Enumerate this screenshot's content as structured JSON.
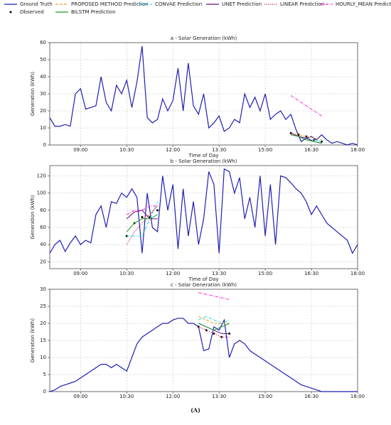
{
  "chart_data": [
    {
      "type": "line",
      "title": "a - Solar Generation (kWh)",
      "x_label": "Time of Day",
      "y_label": "Generation (kWh)",
      "xlim": [
        480,
        1080
      ],
      "xticks": [
        {
          "value": 540,
          "label": "09:00"
        },
        {
          "value": 630,
          "label": "10:30"
        },
        {
          "value": 720,
          "label": "12:00"
        },
        {
          "value": 810,
          "label": "13:30"
        },
        {
          "value": 900,
          "label": "15:00"
        },
        {
          "value": 990,
          "label": "16:30"
        },
        {
          "value": 1080,
          "label": "18:00"
        }
      ],
      "ylim": [
        0,
        60
      ],
      "yticks": [
        0,
        10,
        20,
        30,
        40,
        50,
        60
      ],
      "grid": true,
      "legend": "top",
      "series": [
        {
          "name": "Ground Truth",
          "color": "#1f1fb4",
          "style": "solid",
          "x": [
            480,
            490,
            500,
            510,
            520,
            530,
            540,
            550,
            560,
            570,
            580,
            590,
            600,
            610,
            620,
            630,
            640,
            650,
            660,
            670,
            680,
            690,
            700,
            710,
            720,
            730,
            740,
            750,
            760,
            770,
            780,
            790,
            800,
            810,
            820,
            830,
            840,
            850,
            860,
            870,
            880,
            890,
            900,
            910,
            920,
            930,
            940,
            950,
            960,
            970,
            980,
            990,
            1000,
            1010,
            1020,
            1030,
            1040,
            1050,
            1060,
            1070,
            1080
          ],
          "values": [
            16,
            11,
            11,
            12,
            11,
            30,
            33,
            21,
            22,
            23,
            40,
            25,
            20,
            35,
            30,
            38,
            22,
            37,
            58,
            16,
            13,
            15,
            27,
            20,
            26,
            45,
            20,
            48,
            23,
            18,
            30,
            10,
            13,
            17,
            8,
            10,
            15,
            13,
            30,
            22,
            28,
            20,
            30,
            15,
            18,
            20,
            15,
            18,
            9,
            2,
            4,
            5,
            3,
            6,
            3,
            1,
            2,
            1,
            0,
            1,
            0
          ]
        },
        {
          "name": "Observed",
          "color": "#000000",
          "style": "none",
          "marker": true,
          "x": [
            950,
            965,
            980,
            995,
            1010
          ],
          "values": [
            7,
            6,
            5,
            3,
            2
          ]
        },
        {
          "name": "PROPOSED METHOD Prediction",
          "color": "#ff9f1c",
          "style": "dashed",
          "x": [
            950,
            965,
            980,
            995,
            1010
          ],
          "values": [
            7,
            6,
            5,
            4,
            3
          ]
        },
        {
          "name": "CONVAE Prediction",
          "color": "#17d4e8",
          "style": "dashdot",
          "x": [
            950,
            965,
            980,
            995,
            1010
          ],
          "values": [
            6,
            5,
            4,
            3,
            2
          ]
        },
        {
          "name": "UNET Prediction",
          "color": "#6a0d83",
          "style": "solid",
          "x": [
            950,
            965,
            980,
            995,
            1010
          ],
          "values": [
            7,
            5,
            4,
            2,
            1
          ]
        },
        {
          "name": "LINEAR Prediction",
          "color": "#c2185b",
          "style": "dotted",
          "x": [
            950,
            965,
            980,
            995,
            1010
          ],
          "values": [
            6,
            5,
            3,
            2,
            1
          ]
        },
        {
          "name": "HOURLY_MEAN Prediction",
          "color": "#ff1fd2",
          "style": "dashdot",
          "x": [
            950,
            965,
            980,
            995,
            1010
          ],
          "values": [
            29,
            26,
            23,
            20,
            17
          ]
        },
        {
          "name": "BILSTM Prediction",
          "color": "#1a9e2f",
          "style": "solid",
          "x": [
            950,
            965,
            980,
            995,
            1010
          ],
          "values": [
            6,
            5,
            3,
            2,
            1
          ]
        }
      ]
    },
    {
      "type": "line",
      "title": "b - Solar Generation (kWh)",
      "x_label": "Time of Day",
      "y_label": "Generation (kWh)",
      "xlim": [
        480,
        1080
      ],
      "xticks": [
        {
          "value": 540,
          "label": "09:00"
        },
        {
          "value": 630,
          "label": "10:30"
        },
        {
          "value": 720,
          "label": "12:00"
        },
        {
          "value": 810,
          "label": "13:30"
        },
        {
          "value": 900,
          "label": "15:00"
        },
        {
          "value": 990,
          "label": "16:30"
        },
        {
          "value": 1080,
          "label": "18:00"
        }
      ],
      "ylim": [
        12,
        132
      ],
      "yticks": [
        20,
        40,
        60,
        80,
        100,
        120
      ],
      "grid": true,
      "series": [
        {
          "name": "Ground Truth",
          "color": "#1f1fb4",
          "style": "solid",
          "x": [
            480,
            490,
            500,
            510,
            520,
            530,
            540,
            550,
            560,
            570,
            580,
            590,
            600,
            610,
            620,
            630,
            640,
            650,
            660,
            670,
            680,
            690,
            700,
            710,
            720,
            730,
            740,
            750,
            760,
            770,
            780,
            790,
            800,
            810,
            820,
            830,
            840,
            850,
            860,
            870,
            880,
            890,
            900,
            910,
            920,
            930,
            940,
            950,
            960,
            970,
            980,
            990,
            1000,
            1010,
            1020,
            1030,
            1040,
            1050,
            1060,
            1070,
            1080
          ],
          "values": [
            30,
            40,
            45,
            32,
            42,
            50,
            40,
            45,
            42,
            75,
            85,
            60,
            90,
            88,
            100,
            95,
            105,
            95,
            30,
            100,
            60,
            55,
            120,
            80,
            110,
            35,
            105,
            50,
            90,
            40,
            70,
            125,
            110,
            30,
            128,
            125,
            100,
            118,
            70,
            95,
            60,
            120,
            50,
            110,
            40,
            120,
            118,
            112,
            105,
            100,
            90,
            75,
            85,
            75,
            65,
            60,
            55,
            50,
            45,
            30,
            40
          ]
        },
        {
          "name": "Observed",
          "color": "#000000",
          "style": "none",
          "marker": true,
          "x": [
            630,
            645,
            660,
            675,
            690
          ],
          "values": [
            50,
            65,
            72,
            72,
            80
          ]
        },
        {
          "name": "PROPOSED METHOD Prediction",
          "color": "#ff9f1c",
          "style": "dashed",
          "x": [
            630,
            645,
            660,
            675,
            690
          ],
          "values": [
            55,
            65,
            70,
            75,
            85
          ]
        },
        {
          "name": "CONVAE Prediction",
          "color": "#17d4e8",
          "style": "dashdot",
          "x": [
            630,
            645,
            660,
            675,
            690
          ],
          "values": [
            50,
            50,
            50,
            70,
            90
          ]
        },
        {
          "name": "UNET Prediction",
          "color": "#6a0d83",
          "style": "solid",
          "x": [
            630,
            645,
            660,
            675,
            690
          ],
          "values": [
            70,
            78,
            80,
            70,
            70
          ]
        },
        {
          "name": "LINEAR Prediction",
          "color": "#c2185b",
          "style": "dotted",
          "x": [
            630,
            645,
            660,
            675,
            690
          ],
          "values": [
            40,
            55,
            65,
            75,
            85
          ]
        },
        {
          "name": "HOURLY_MEAN Prediction",
          "color": "#ff1fd2",
          "style": "dashdot",
          "x": [
            630,
            645,
            660,
            675,
            690
          ],
          "values": [
            75,
            80,
            80,
            85,
            85
          ]
        },
        {
          "name": "BILSTM Prediction",
          "color": "#1a9e2f",
          "style": "solid",
          "x": [
            630,
            645,
            660,
            675,
            690
          ],
          "values": [
            55,
            65,
            70,
            70,
            75
          ]
        }
      ]
    },
    {
      "type": "line",
      "title": "c - Solar Generation (kWh)",
      "y_label": "Generation (kWh)",
      "xlim": [
        480,
        1080
      ],
      "xticks": [
        {
          "value": 540,
          "label": "09:00"
        },
        {
          "value": 630,
          "label": "10:30"
        },
        {
          "value": 720,
          "label": "12:00"
        },
        {
          "value": 810,
          "label": "13:30"
        },
        {
          "value": 900,
          "label": "15:00"
        },
        {
          "value": 990,
          "label": "16:30"
        },
        {
          "value": 1080,
          "label": "18:00"
        }
      ],
      "ylim": [
        0,
        30
      ],
      "yticks": [
        0,
        5,
        10,
        15,
        20,
        25,
        30
      ],
      "grid": true,
      "series": [
        {
          "name": "Ground Truth",
          "color": "#1f1fb4",
          "style": "solid",
          "x": [
            480,
            490,
            500,
            510,
            520,
            530,
            540,
            550,
            560,
            570,
            580,
            590,
            600,
            610,
            620,
            630,
            640,
            650,
            660,
            670,
            680,
            690,
            700,
            710,
            720,
            730,
            740,
            750,
            760,
            770,
            780,
            790,
            800,
            810,
            820,
            830,
            840,
            850,
            860,
            870,
            880,
            890,
            900,
            910,
            920,
            930,
            940,
            950,
            960,
            970,
            980,
            990,
            1000,
            1010,
            1020,
            1030,
            1040,
            1050,
            1060,
            1070,
            1080
          ],
          "values": [
            0,
            0.5,
            1.5,
            2,
            2.5,
            3,
            4,
            5,
            6,
            7,
            8,
            8,
            7,
            8,
            7,
            6,
            10,
            14,
            16,
            17,
            18,
            19,
            20,
            20,
            21,
            21.5,
            21.5,
            20,
            20,
            19,
            12,
            12.5,
            19,
            18,
            21,
            10,
            14,
            15,
            14,
            12,
            11,
            10,
            9,
            8,
            7,
            6,
            5,
            4,
            3,
            2,
            1.5,
            1,
            0.5,
            0,
            0,
            0,
            0,
            0,
            0,
            0,
            0
          ]
        },
        {
          "name": "Observed",
          "color": "#000000",
          "style": "none",
          "marker": true,
          "x": [
            770,
            785,
            800,
            815,
            830
          ],
          "values": [
            19,
            18,
            17,
            16,
            17
          ]
        },
        {
          "name": "PROPOSED METHOD Prediction",
          "color": "#ff9f1c",
          "style": "dashed",
          "x": [
            770,
            785,
            800,
            815,
            830
          ],
          "values": [
            22,
            21,
            20,
            20,
            20
          ]
        },
        {
          "name": "CONVAE Prediction",
          "color": "#17d4e8",
          "style": "dashdot",
          "x": [
            770,
            785,
            800,
            815,
            830
          ],
          "values": [
            21,
            22,
            21,
            20,
            21
          ]
        },
        {
          "name": "UNET Prediction",
          "color": "#6a0d83",
          "style": "solid",
          "x": [
            770,
            785,
            800,
            815,
            830
          ],
          "values": [
            20,
            19,
            18,
            17,
            17
          ]
        },
        {
          "name": "LINEAR Prediction",
          "color": "#c2185b",
          "style": "dotted",
          "x": [
            770,
            785,
            800,
            815,
            830
          ],
          "values": [
            19,
            18,
            17,
            16,
            16
          ]
        },
        {
          "name": "HOURLY_MEAN Prediction",
          "color": "#ff1fd2",
          "style": "dashdot",
          "x": [
            770,
            785,
            800,
            815,
            830
          ],
          "values": [
            29,
            28.5,
            28,
            27.5,
            27
          ]
        },
        {
          "name": "BILSTM Prediction",
          "color": "#1a9e2f",
          "style": "solid",
          "x": [
            770,
            785,
            800,
            815,
            830
          ],
          "values": [
            20,
            19,
            18,
            19,
            20
          ]
        }
      ]
    }
  ],
  "caption": "(A)"
}
